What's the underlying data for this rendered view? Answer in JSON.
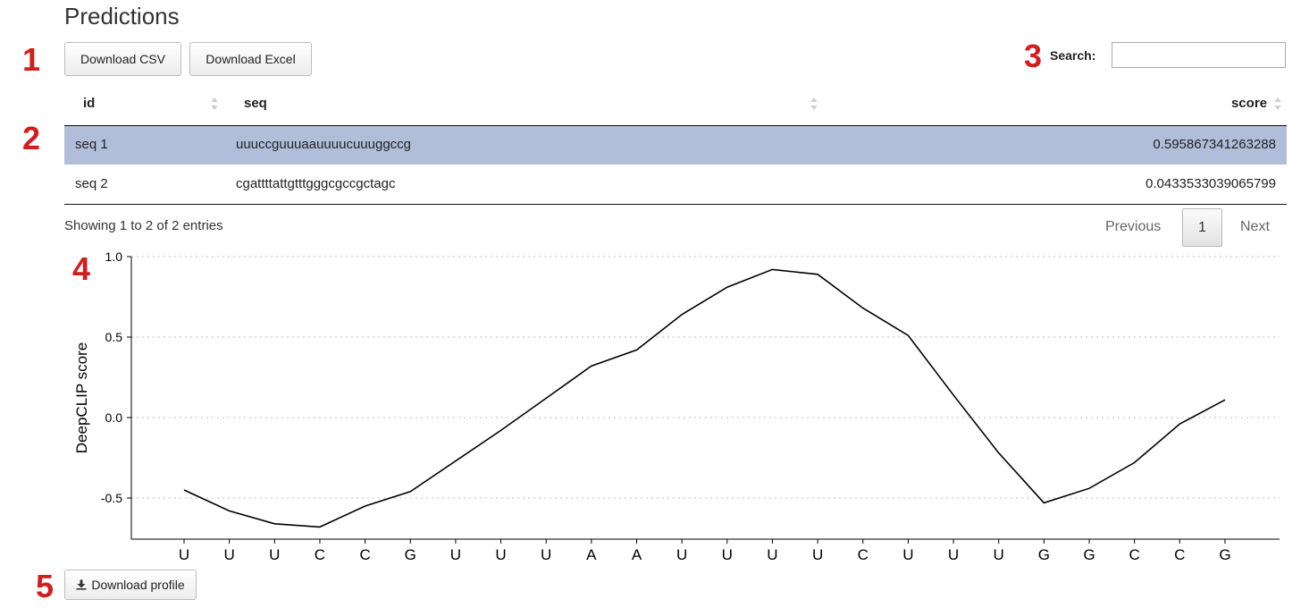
{
  "title": "Predictions",
  "markers": [
    "1",
    "2",
    "3",
    "4",
    "5"
  ],
  "toolbar": {
    "download_csv_label": "Download CSV",
    "download_excel_label": "Download Excel"
  },
  "search": {
    "label": "Search:",
    "value": "",
    "placeholder": ""
  },
  "table": {
    "columns": [
      "id",
      "seq",
      "score"
    ],
    "rows": [
      {
        "id": "seq 1",
        "seq": "uuuccguuuaauuuucuuuggccg",
        "score": "0.595867341263288",
        "selected": true
      },
      {
        "id": "seq 2",
        "seq": "cgattttattgtttgggcgccgctagc",
        "score": "0.0433533039065799",
        "selected": false
      }
    ],
    "selected_row_color": "#b0bed9"
  },
  "pagination": {
    "info": "Showing 1 to 2 of 2 entries",
    "previous": "Previous",
    "current_page": "1",
    "next": "Next"
  },
  "chart_data": {
    "type": "line",
    "ylabel": "DeepCLIP score",
    "xlabel": "",
    "categories": [
      "U",
      "U",
      "U",
      "C",
      "C",
      "G",
      "U",
      "U",
      "U",
      "A",
      "A",
      "U",
      "U",
      "U",
      "U",
      "C",
      "U",
      "U",
      "U",
      "G",
      "G",
      "C",
      "C",
      "G"
    ],
    "values": [
      -0.45,
      -0.58,
      -0.66,
      -0.68,
      -0.55,
      -0.46,
      -0.27,
      -0.08,
      0.12,
      0.32,
      0.42,
      0.64,
      0.81,
      0.92,
      0.89,
      0.68,
      0.51,
      0.14,
      -0.22,
      -0.53,
      -0.44,
      -0.28,
      -0.04,
      0.11
    ],
    "yticks": [
      1.0,
      0.5,
      0.0,
      -0.5
    ],
    "ytick_labels": [
      "1.0",
      "0.5",
      "0.0",
      "-0.5"
    ],
    "ylim": [
      -0.75,
      1.0
    ],
    "grid": "horizontal dotted",
    "line_color": "#000000"
  },
  "download_profile_label": "Download profile",
  "download_icon": "download-icon",
  "sort_icon": "sort-arrows-icon"
}
